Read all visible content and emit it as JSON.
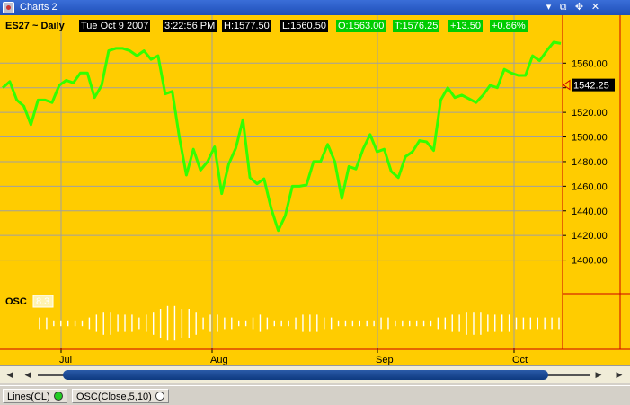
{
  "window": {
    "title": "Charts 2",
    "controls": {
      "menu": "▾",
      "restore": "⧉",
      "move": "✥",
      "close": "✕"
    }
  },
  "header": {
    "symbol": "ES27 ~ Daily",
    "date": "Tue Oct 9 2007",
    "time": "3:22:56 PM",
    "high": "H:1577.50",
    "low": "L:1560.50",
    "open": "O:1563.00",
    "last": "T:1576.25",
    "change": "+13.50",
    "change_pct": "+0.86%"
  },
  "price_marker": "1542.25",
  "indicator": {
    "label": "OSC",
    "value": "8.3"
  },
  "colors": {
    "background": "#ffcc00",
    "grid": "#a0a0a0",
    "line": "#33ff00",
    "positive": "#00cc00",
    "axis_red": "#cc0000",
    "osc": "#ffffff"
  },
  "status": {
    "lines_label": "Lines(CL)",
    "lines_dot_color": "#22cc22",
    "osc_label": "OSC(Close,5,10)",
    "osc_dot_color": "#ffffff"
  },
  "chart_data": {
    "type": "line",
    "x_ticks": [
      "Jul",
      "Aug",
      "Sep",
      "Oct"
    ],
    "y_ticks": [
      1400,
      1420,
      1440,
      1460,
      1480,
      1500,
      1520,
      1540,
      1560
    ],
    "ylim": [
      1380,
      1577
    ],
    "grid": true,
    "series": [
      {
        "values": [
          1540,
          1545,
          1530,
          1525,
          1510,
          1530,
          1530,
          1528,
          1542,
          1546,
          1544,
          1552,
          1552,
          1532,
          1542,
          1570,
          1572,
          1572,
          1570,
          1566,
          1570,
          1563,
          1566,
          1535,
          1537,
          1500,
          1469,
          1490,
          1473,
          1480,
          1492,
          1454,
          1478,
          1491,
          1514,
          1467,
          1462,
          1466,
          1442,
          1424,
          1436,
          1460,
          1460,
          1461,
          1480,
          1480,
          1494,
          1480,
          1450,
          1476,
          1474,
          1490,
          1502,
          1488,
          1490,
          1472,
          1467,
          1484,
          1488,
          1497,
          1496,
          1489,
          1530,
          1540,
          1532,
          1534,
          1531,
          1528,
          1534,
          1542,
          1540,
          1555,
          1552,
          1550,
          1550,
          1566,
          1562,
          1570,
          1577,
          1576
        ]
      }
    ],
    "osc_values": [
      2,
      2,
      1,
      1,
      -1,
      1,
      1,
      2,
      3,
      4,
      4,
      3,
      3,
      3,
      2,
      -3,
      -4,
      -5,
      -6,
      -6,
      -5,
      -5,
      -4,
      -2,
      -3,
      -3,
      -2,
      -2,
      -1,
      -1,
      -2,
      -3,
      -2,
      -1,
      1,
      1,
      2,
      3,
      3,
      3,
      2,
      2,
      1,
      1,
      1,
      1,
      1,
      -1,
      -2,
      -2,
      -1,
      -1,
      1,
      1,
      1,
      1,
      2,
      2,
      3,
      3,
      4,
      4,
      4,
      3,
      3,
      3,
      3,
      2,
      2,
      2,
      2,
      2,
      2,
      2
    ]
  }
}
